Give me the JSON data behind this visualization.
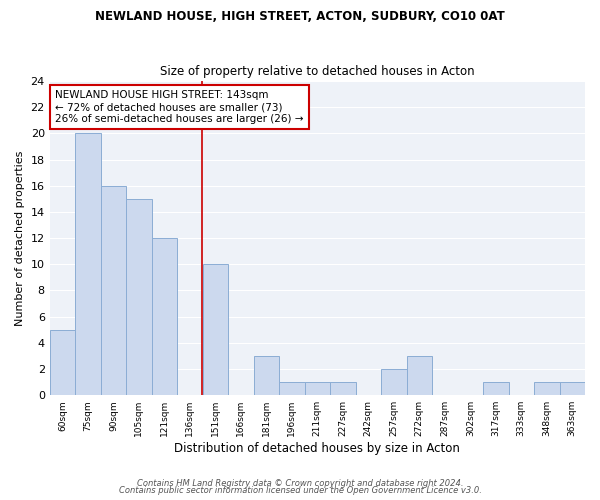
{
  "title": "NEWLAND HOUSE, HIGH STREET, ACTON, SUDBURY, CO10 0AT",
  "subtitle": "Size of property relative to detached houses in Acton",
  "xlabel": "Distribution of detached houses by size in Acton",
  "ylabel": "Number of detached properties",
  "bar_labels": [
    "60sqm",
    "75sqm",
    "90sqm",
    "105sqm",
    "121sqm",
    "136sqm",
    "151sqm",
    "166sqm",
    "181sqm",
    "196sqm",
    "211sqm",
    "227sqm",
    "242sqm",
    "257sqm",
    "272sqm",
    "287sqm",
    "302sqm",
    "317sqm",
    "333sqm",
    "348sqm",
    "363sqm"
  ],
  "bar_values": [
    5,
    20,
    16,
    15,
    12,
    0,
    10,
    0,
    3,
    1,
    1,
    1,
    0,
    2,
    3,
    0,
    0,
    1,
    0,
    1,
    1
  ],
  "bar_color": "#ccd9ee",
  "bar_edge_color": "#8badd4",
  "plot_bg_color": "#eef2f8",
  "grid_color": "#ffffff",
  "reference_line_x": 5.47,
  "annotation_title": "NEWLAND HOUSE HIGH STREET: 143sqm",
  "annotation_line1": "← 72% of detached houses are smaller (73)",
  "annotation_line2": "26% of semi-detached houses are larger (26) →",
  "annotation_box_color": "#ffffff",
  "annotation_box_edge_color": "#cc0000",
  "reference_line_color": "#cc0000",
  "ylim": [
    0,
    24
  ],
  "yticks": [
    0,
    2,
    4,
    6,
    8,
    10,
    12,
    14,
    16,
    18,
    20,
    22,
    24
  ],
  "footer_line1": "Contains HM Land Registry data © Crown copyright and database right 2024.",
  "footer_line2": "Contains public sector information licensed under the Open Government Licence v3.0.",
  "background_color": "#ffffff"
}
